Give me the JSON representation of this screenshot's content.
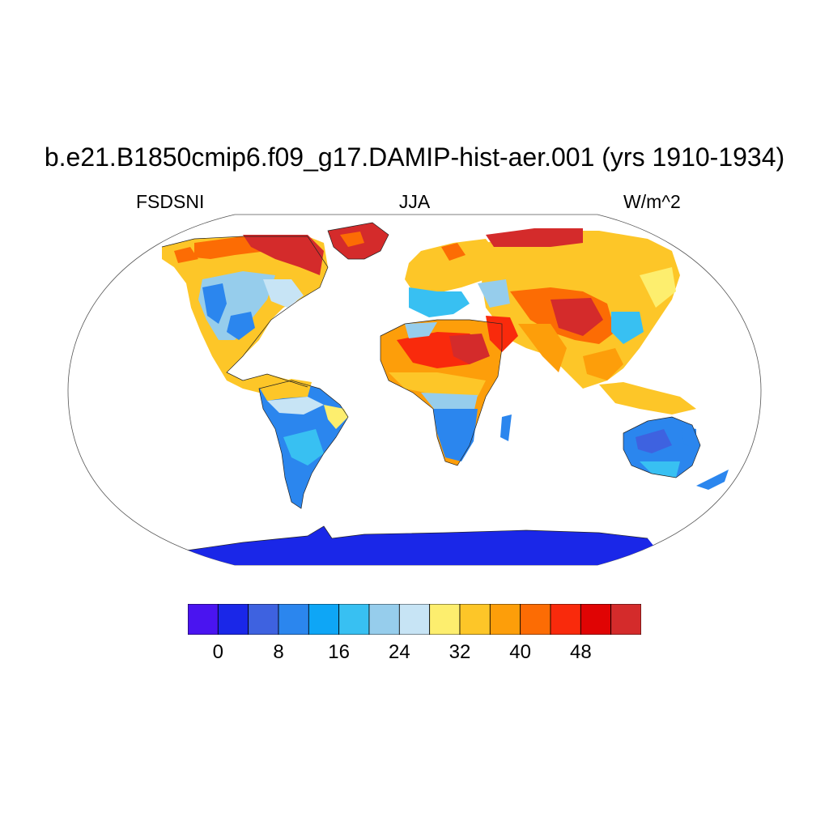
{
  "header": {
    "title": "b.e21.B1850cmip6.f09_g17.DAMIP-hist-aer.001 (yrs 1910-1934)",
    "left_label": "FSDSNI",
    "center_label": "JJA",
    "right_label": "W/m^2"
  },
  "legend": {
    "colors": [
      "#4a14f0",
      "#1a27e8",
      "#3e62e0",
      "#2b86ee",
      "#0ea6f6",
      "#38c0f2",
      "#96cdec",
      "#c7e4f5",
      "#fdee6e",
      "#fdc628",
      "#fd9e0a",
      "#fc6c04",
      "#f92a0c",
      "#e00404",
      "#d42b2b"
    ],
    "tick_labels": [
      "0",
      "8",
      "16",
      "24",
      "32",
      "40",
      "48"
    ]
  }
}
